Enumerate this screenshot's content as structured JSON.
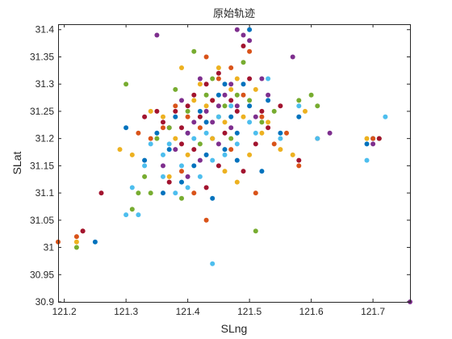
{
  "chart_data": {
    "type": "scatter",
    "title": "原始轨迹",
    "xlabel": "SLng",
    "ylabel": "SLat",
    "xlim": [
      121.19,
      121.76
    ],
    "ylim": [
      30.9,
      31.41
    ],
    "xticks": [
      "121.2",
      "121.3",
      "121.4",
      "121.5",
      "121.6",
      "121.7"
    ],
    "xtick_values": [
      121.2,
      121.3,
      121.4,
      121.5,
      121.6,
      121.7
    ],
    "yticks": [
      "30.9",
      "30.95",
      "31",
      "31.05",
      "31.1",
      "31.15",
      "31.2",
      "31.25",
      "31.3",
      "31.35",
      "31.4"
    ],
    "ytick_values": [
      30.9,
      30.95,
      31.0,
      31.05,
      31.1,
      31.15,
      31.2,
      31.25,
      31.3,
      31.35,
      31.4
    ],
    "grid": false,
    "legend": "none",
    "box": true,
    "series": [
      {
        "color": "#0072BD",
        "points": [
          [
            121.25,
            31.01
          ],
          [
            121.3,
            31.22
          ],
          [
            121.33,
            31.16
          ],
          [
            121.35,
            31.21
          ],
          [
            121.37,
            31.18
          ],
          [
            121.38,
            31.24
          ],
          [
            121.4,
            31.21
          ],
          [
            121.42,
            31.25
          ],
          [
            121.43,
            31.23
          ],
          [
            121.44,
            31.2
          ],
          [
            121.45,
            31.28
          ],
          [
            121.46,
            31.18
          ],
          [
            121.47,
            31.24
          ],
          [
            121.48,
            31.21
          ],
          [
            121.49,
            31.3
          ],
          [
            121.5,
            31.26
          ],
          [
            121.52,
            31.14
          ],
          [
            121.53,
            31.27
          ],
          [
            121.55,
            31.21
          ],
          [
            121.58,
            31.24
          ],
          [
            121.69,
            31.19
          ],
          [
            121.7,
            31.2
          ],
          [
            121.41,
            31.15
          ],
          [
            121.39,
            31.12
          ],
          [
            121.36,
            31.1
          ],
          [
            121.44,
            31.09
          ],
          [
            121.46,
            31.3
          ],
          [
            121.5,
            31.4
          ],
          [
            121.43,
            31.17
          ],
          [
            121.48,
            31.16
          ]
        ]
      },
      {
        "color": "#D95319",
        "points": [
          [
            121.19,
            31.01
          ],
          [
            121.22,
            31.02
          ],
          [
            121.23,
            31.03
          ],
          [
            121.32,
            31.21
          ],
          [
            121.34,
            31.2
          ],
          [
            121.36,
            31.22
          ],
          [
            121.38,
            31.26
          ],
          [
            121.4,
            31.24
          ],
          [
            121.42,
            31.22
          ],
          [
            121.43,
            31.35
          ],
          [
            121.44,
            31.27
          ],
          [
            121.45,
            31.31
          ],
          [
            121.47,
            31.33
          ],
          [
            121.49,
            31.28
          ],
          [
            121.5,
            31.36
          ],
          [
            121.52,
            31.24
          ],
          [
            121.54,
            31.19
          ],
          [
            121.56,
            31.21
          ],
          [
            121.58,
            31.15
          ],
          [
            121.61,
            31.2
          ],
          [
            121.7,
            31.2
          ],
          [
            121.51,
            31.1
          ],
          [
            121.43,
            31.05
          ],
          [
            121.47,
            31.18
          ],
          [
            121.39,
            31.14
          ],
          [
            121.41,
            31.1
          ]
        ]
      },
      {
        "color": "#EDB120",
        "points": [
          [
            121.22,
            31.01
          ],
          [
            121.29,
            31.18
          ],
          [
            121.31,
            31.17
          ],
          [
            121.34,
            31.25
          ],
          [
            121.36,
            31.24
          ],
          [
            121.38,
            31.2
          ],
          [
            121.39,
            31.33
          ],
          [
            121.41,
            31.27
          ],
          [
            121.42,
            31.3
          ],
          [
            121.43,
            31.26
          ],
          [
            121.45,
            31.33
          ],
          [
            121.46,
            31.23
          ],
          [
            121.47,
            31.29
          ],
          [
            121.48,
            31.31
          ],
          [
            121.49,
            31.24
          ],
          [
            121.51,
            31.29
          ],
          [
            121.52,
            31.21
          ],
          [
            121.53,
            31.23
          ],
          [
            121.55,
            31.18
          ],
          [
            121.57,
            31.17
          ],
          [
            121.59,
            31.25
          ],
          [
            121.69,
            31.2
          ],
          [
            121.44,
            31.2
          ],
          [
            121.4,
            31.17
          ],
          [
            121.37,
            31.13
          ],
          [
            121.46,
            31.14
          ],
          [
            121.5,
            31.17
          ],
          [
            121.48,
            31.12
          ]
        ]
      },
      {
        "color": "#7E2F8E",
        "points": [
          [
            121.35,
            31.39
          ],
          [
            121.37,
            31.22
          ],
          [
            121.39,
            31.27
          ],
          [
            121.4,
            31.21
          ],
          [
            121.41,
            31.23
          ],
          [
            121.42,
            31.31
          ],
          [
            121.43,
            31.25
          ],
          [
            121.44,
            31.23
          ],
          [
            121.45,
            31.26
          ],
          [
            121.46,
            31.28
          ],
          [
            121.47,
            31.3
          ],
          [
            121.48,
            31.26
          ],
          [
            121.49,
            31.39
          ],
          [
            121.5,
            31.38
          ],
          [
            121.51,
            31.24
          ],
          [
            121.53,
            31.28
          ],
          [
            121.57,
            31.35
          ],
          [
            121.63,
            31.21
          ],
          [
            121.7,
            31.19
          ],
          [
            121.76,
            30.9
          ],
          [
            121.38,
            31.18
          ],
          [
            121.42,
            31.16
          ],
          [
            121.45,
            31.19
          ],
          [
            121.47,
            31.22
          ],
          [
            121.36,
            31.15
          ],
          [
            121.4,
            31.13
          ],
          [
            121.48,
            31.4
          ],
          [
            121.52,
            31.31
          ]
        ]
      },
      {
        "color": "#77AC30",
        "points": [
          [
            121.22,
            31.0
          ],
          [
            121.3,
            31.3
          ],
          [
            121.31,
            31.07
          ],
          [
            121.32,
            31.1
          ],
          [
            121.33,
            31.13
          ],
          [
            121.35,
            31.2
          ],
          [
            121.37,
            31.22
          ],
          [
            121.38,
            31.29
          ],
          [
            121.4,
            31.25
          ],
          [
            121.41,
            31.36
          ],
          [
            121.43,
            31.28
          ],
          [
            121.44,
            31.31
          ],
          [
            121.45,
            31.24
          ],
          [
            121.46,
            31.26
          ],
          [
            121.48,
            31.28
          ],
          [
            121.49,
            31.34
          ],
          [
            121.5,
            31.27
          ],
          [
            121.51,
            31.03
          ],
          [
            121.52,
            31.23
          ],
          [
            121.54,
            31.25
          ],
          [
            121.58,
            31.27
          ],
          [
            121.6,
            31.28
          ],
          [
            121.61,
            31.26
          ],
          [
            121.71,
            31.2
          ],
          [
            121.39,
            31.09
          ],
          [
            121.34,
            31.1
          ],
          [
            121.42,
            31.19
          ],
          [
            121.47,
            31.2
          ]
        ]
      },
      {
        "color": "#4DBEEE",
        "points": [
          [
            121.3,
            31.06
          ],
          [
            121.31,
            31.11
          ],
          [
            121.32,
            31.06
          ],
          [
            121.33,
            31.15
          ],
          [
            121.34,
            31.19
          ],
          [
            121.36,
            31.17
          ],
          [
            121.38,
            31.1
          ],
          [
            121.39,
            31.15
          ],
          [
            121.41,
            31.2
          ],
          [
            121.42,
            31.13
          ],
          [
            121.43,
            31.21
          ],
          [
            121.44,
            30.97
          ],
          [
            121.45,
            31.24
          ],
          [
            121.46,
            31.17
          ],
          [
            121.48,
            31.19
          ],
          [
            121.5,
            31.23
          ],
          [
            121.51,
            31.21
          ],
          [
            121.53,
            31.31
          ],
          [
            121.55,
            31.2
          ],
          [
            121.58,
            31.26
          ],
          [
            121.61,
            31.2
          ],
          [
            121.69,
            31.16
          ],
          [
            121.72,
            31.24
          ],
          [
            121.4,
            31.11
          ],
          [
            121.37,
            31.19
          ],
          [
            121.47,
            31.26
          ],
          [
            121.44,
            31.16
          ],
          [
            121.36,
            31.13
          ]
        ]
      },
      {
        "color": "#A2142F",
        "points": [
          [
            121.23,
            31.03
          ],
          [
            121.26,
            31.1
          ],
          [
            121.33,
            31.24
          ],
          [
            121.35,
            31.25
          ],
          [
            121.36,
            31.23
          ],
          [
            121.38,
            31.25
          ],
          [
            121.39,
            31.22
          ],
          [
            121.4,
            31.26
          ],
          [
            121.41,
            31.28
          ],
          [
            121.42,
            31.24
          ],
          [
            121.43,
            31.3
          ],
          [
            121.44,
            31.27
          ],
          [
            121.45,
            31.32
          ],
          [
            121.46,
            31.21
          ],
          [
            121.47,
            31.27
          ],
          [
            121.48,
            31.25
          ],
          [
            121.49,
            31.37
          ],
          [
            121.5,
            31.31
          ],
          [
            121.52,
            31.25
          ],
          [
            121.53,
            31.22
          ],
          [
            121.55,
            31.26
          ],
          [
            121.58,
            31.16
          ],
          [
            121.71,
            31.2
          ],
          [
            121.41,
            31.18
          ],
          [
            121.39,
            31.19
          ],
          [
            121.43,
            31.11
          ],
          [
            121.37,
            31.12
          ],
          [
            121.45,
            31.15
          ],
          [
            121.49,
            31.14
          ],
          [
            121.51,
            31.19
          ]
        ]
      }
    ]
  }
}
